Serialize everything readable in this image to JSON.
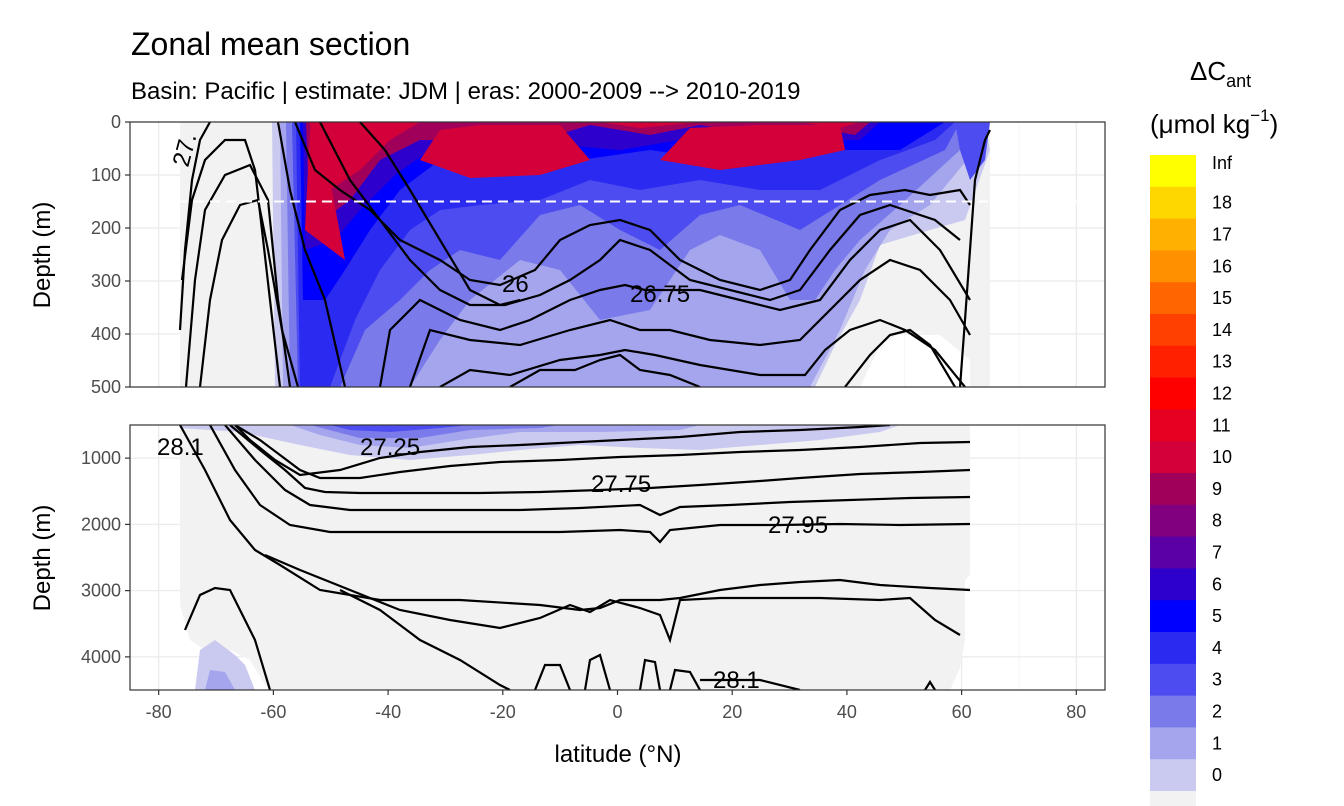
{
  "chart_data": {
    "type": "contour",
    "title": "Zonal mean section",
    "subtitle": "Basin: Pacific | estimate: JDM  | eras: 2000-2009 --> 2010-2019",
    "xlabel": "latitude (°N)",
    "ylabel_top": "Depth (m)",
    "ylabel_bottom": "Depth (m)",
    "x_ticks": [
      "-80",
      "-60",
      "-40",
      "-20",
      "0",
      "20",
      "40",
      "60",
      "80"
    ],
    "x_tick_values": [
      -80,
      -60,
      -40,
      -20,
      0,
      20,
      40,
      60,
      80
    ],
    "xlim": [
      -85,
      85
    ],
    "top_panel": {
      "ylim": [
        500,
        0
      ],
      "y_ticks": [
        "0",
        "100",
        "200",
        "300",
        "400",
        "500"
      ],
      "y_tick_values": [
        0,
        100,
        200,
        300,
        400,
        500
      ],
      "reference_depth": 150
    },
    "bottom_panel": {
      "ylim": [
        4500,
        500
      ],
      "y_ticks": [
        "1000",
        "2000",
        "3000",
        "4000"
      ],
      "y_tick_values": [
        1000,
        2000,
        3000,
        4000
      ]
    },
    "legend": {
      "title_main": "ΔC",
      "title_sub": "ant",
      "unit_prefix": "(μmol kg",
      "unit_sup": "−1",
      "unit_suffix": ")",
      "labels": [
        "Inf",
        "18",
        "17",
        "16",
        "15",
        "14",
        "13",
        "12",
        "11",
        "10",
        "9",
        "8",
        "7",
        "6",
        "5",
        "4",
        "3",
        "2",
        "1",
        "0"
      ],
      "colors": [
        "#ffff00",
        "#ffd700",
        "#ffb000",
        "#ff9000",
        "#ff6600",
        "#ff4000",
        "#ff2000",
        "#ff0000",
        "#e60022",
        "#d4003a",
        "#a0005a",
        "#800080",
        "#5a00a5",
        "#2e00cc",
        "#0000ff",
        "#2a2af0",
        "#4c4cf0",
        "#7a7aeb",
        "#a5a5ee",
        "#cacaf0",
        "#f2f2f2"
      ]
    },
    "isopycnal_labels_top": [
      "27.",
      "26",
      "26.75"
    ],
    "isopycnal_labels_bottom": [
      "28.1",
      "27.25",
      "27.75",
      "27.95",
      "28.1"
    ]
  }
}
